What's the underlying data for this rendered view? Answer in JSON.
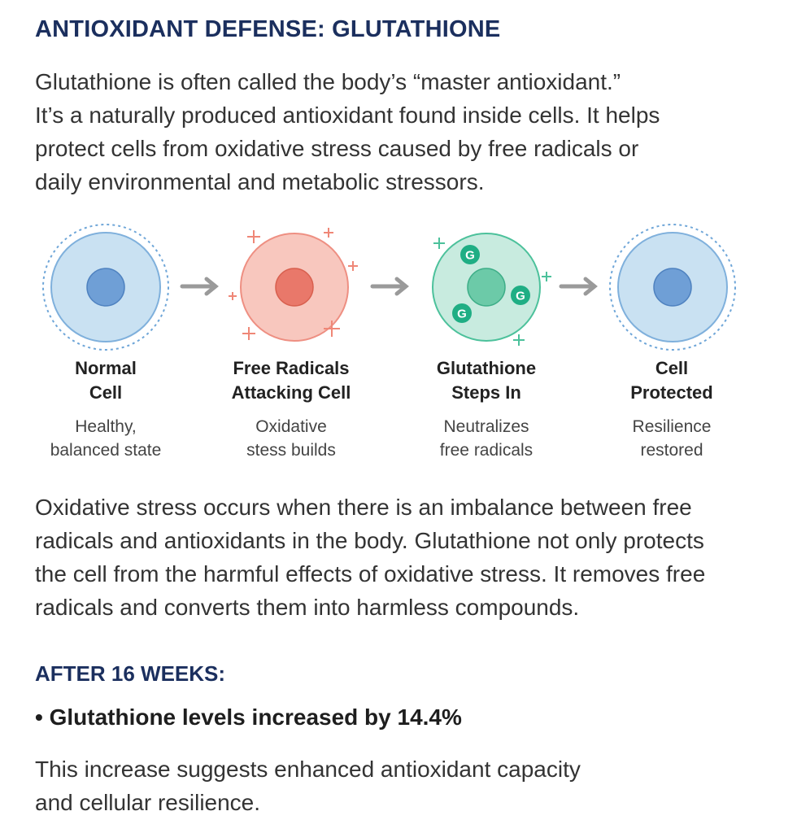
{
  "title": "ANTIOXIDANT DEFENSE: GLUTATHIONE",
  "intro": [
    "Glutathione is often called the body’s “master antioxidant.”",
    "It’s a naturally produced antioxidant found inside cells. It helps",
    "protect cells from oxidative stress caused by free radicals or",
    "daily environmental and metabolic stressors."
  ],
  "stages": [
    {
      "title": [
        "Normal",
        "Cell"
      ],
      "desc": [
        "Healthy,",
        "balanced state"
      ]
    },
    {
      "title": [
        "Free Radicals",
        "Attacking Cell"
      ],
      "desc": [
        "Oxidative",
        "stess builds"
      ]
    },
    {
      "title": [
        "Glutathione",
        "Steps In"
      ],
      "desc": [
        "Neutralizes",
        "free radicals"
      ]
    },
    {
      "title": [
        "Cell",
        "Protected"
      ],
      "desc": [
        "Resilience",
        "restored"
      ]
    }
  ],
  "glutathione_marker": "G",
  "colors": {
    "heading": "#1b2f5e",
    "normal_cell": "#c9e1f2",
    "normal_nucleus": "#6f9fd6",
    "radical_cell": "#f8c7be",
    "radical_nucleus": "#e9786a",
    "glutathione_cell": "#c8ebdf",
    "glutathione_marker": "#1fae84",
    "arrow": "#9a9a9a"
  },
  "body": [
    "Oxidative stress occurs when there is an imbalance between free",
    "radicals and antioxidants in the body. Glutathione not only protects",
    "the cell from the harmful effects of oxidative stress. It removes free",
    "radicals and converts them into harmless compounds."
  ],
  "results_heading": "AFTER 16 WEEKS:",
  "result_bullet": "• Glutathione levels increased by 14.4%",
  "closing": [
    "This increase suggests enhanced antioxidant capacity",
    "and cellular resilience."
  ]
}
